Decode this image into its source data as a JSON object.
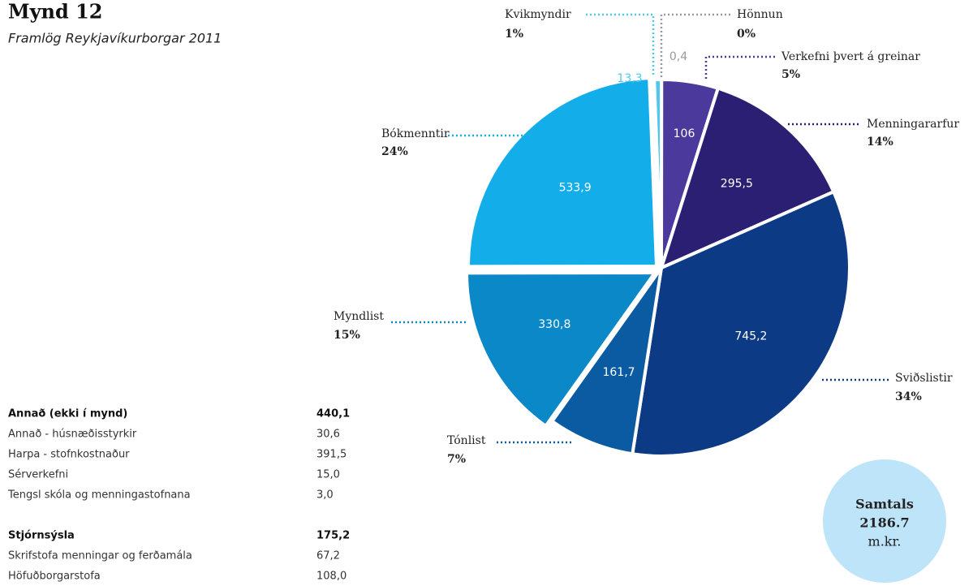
{
  "chart_data": {
    "type": "pie",
    "title": "Mynd 12",
    "subtitle": "Framlög Reykjavíkurborgar 2011",
    "categories": [
      "Hönnun",
      "Verkefni þvert á greinar",
      "Menningararfur",
      "Sviðslistir",
      "Tónlist",
      "Myndlist",
      "Bókmenntir",
      "Kvikmyndir"
    ],
    "values": [
      0.4,
      106,
      295.5,
      745.2,
      161.7,
      330.8,
      533.9,
      13.3
    ],
    "value_labels": [
      "0,4",
      "106",
      "295,5",
      "745,2",
      "161,7",
      "330,8",
      "533,9",
      "13,3"
    ],
    "shares": [
      0,
      5,
      14,
      34,
      7,
      15,
      24,
      1
    ],
    "share_labels": [
      "0%",
      "5%",
      "14%",
      "34%",
      "7%",
      "15%",
      "24%",
      "1%"
    ],
    "colors": [
      "#9a9a9a",
      "#4b3a9c",
      "#2a1f72",
      "#0c3a85",
      "#0b5ba3",
      "#0a88c7",
      "#13aeea",
      "#4fc8f1"
    ],
    "total": {
      "label": "Samtals",
      "value": 2186.7,
      "unit": "m.kr."
    }
  },
  "tables": [
    {
      "heading": "Annað (ekki í mynd)",
      "value": "440,1",
      "rows": [
        [
          "Annað - húsnæðisstyrkir",
          "30,6"
        ],
        [
          "Harpa - stofnkostnaður",
          "391,5"
        ],
        [
          "Sérverkefni",
          "15,0"
        ],
        [
          "Tengsl skóla og menningastofnana",
          "3,0"
        ]
      ]
    },
    {
      "heading": "Stjórnsýsla",
      "value": "175,2",
      "rows": [
        [
          "Skrifstofa menningar og ferðamála",
          "67,2"
        ],
        [
          "Höfuðborgarstofa",
          "108,0"
        ]
      ]
    }
  ]
}
